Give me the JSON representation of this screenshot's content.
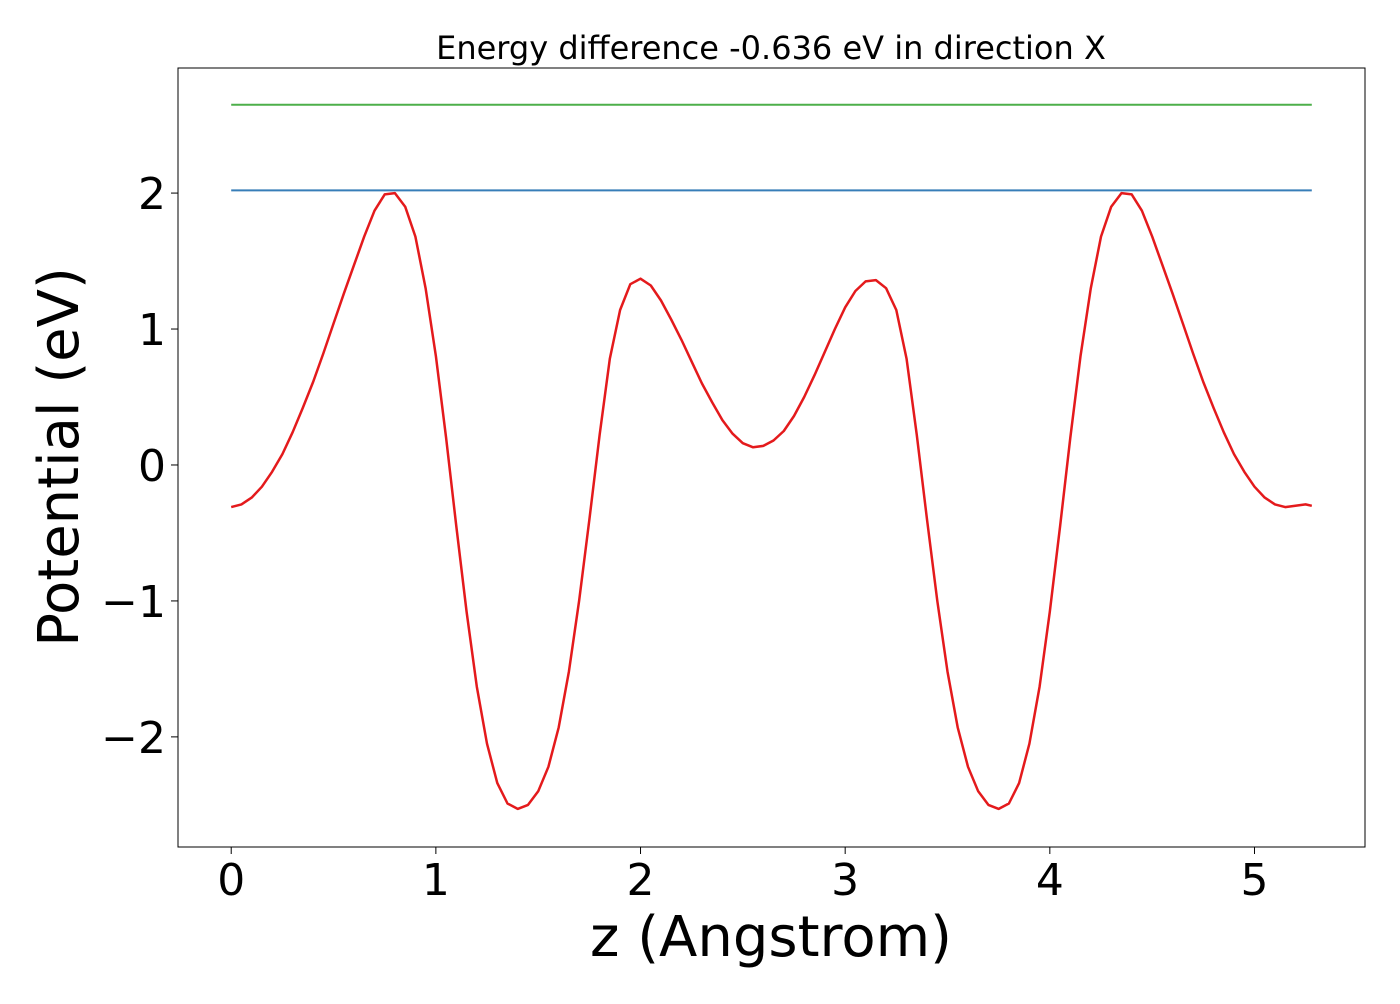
{
  "chart_data": {
    "type": "line",
    "title": "Energy difference -0.636 eV in direction X",
    "xlabel": "z (Angstrom)",
    "ylabel": "Potential (eV)",
    "xlim": [
      -0.26,
      5.54
    ],
    "ylim": [
      -2.81,
      2.92
    ],
    "xticks": [
      0,
      1,
      2,
      3,
      4,
      5
    ],
    "xtick_labels": [
      "0",
      "1",
      "2",
      "3",
      "4",
      "5"
    ],
    "yticks": [
      -2,
      -1,
      0,
      1,
      2
    ],
    "ytick_labels": [
      "−2",
      "−1",
      "0",
      "1",
      "2"
    ],
    "grid": false,
    "legend": "none",
    "series": [
      {
        "color": "#e41a1c",
        "x": [
          0,
          0.05,
          0.1,
          0.15,
          0.2,
          0.25,
          0.3,
          0.35,
          0.4,
          0.45,
          0.5,
          0.55,
          0.6,
          0.65,
          0.7,
          0.75,
          0.8,
          0.85,
          0.9,
          0.95,
          1.0,
          1.05,
          1.1,
          1.15,
          1.2,
          1.25,
          1.3,
          1.35,
          1.4,
          1.45,
          1.5,
          1.55,
          1.6,
          1.65,
          1.7,
          1.75,
          1.8,
          1.85,
          1.9,
          1.95,
          2.0,
          2.05,
          2.1,
          2.15,
          2.2,
          2.25,
          2.3,
          2.35,
          2.4,
          2.45,
          2.5,
          2.55,
          2.6,
          2.65,
          2.7,
          2.75,
          2.8,
          2.85,
          2.9,
          2.95,
          3.0,
          3.05,
          3.1,
          3.15,
          3.2,
          3.25,
          3.3,
          3.35,
          3.4,
          3.45,
          3.5,
          3.55,
          3.6,
          3.65,
          3.7,
          3.75,
          3.8,
          3.85,
          3.9,
          3.95,
          4.0,
          4.05,
          4.1,
          4.15,
          4.2,
          4.25,
          4.3,
          4.35,
          4.4,
          4.45,
          4.5,
          4.55,
          4.6,
          4.65,
          4.7,
          4.75,
          4.8,
          4.85,
          4.9,
          4.95,
          5.0,
          5.05,
          5.1,
          5.15,
          5.2,
          5.25,
          5.28
        ],
        "y": [
          -0.31,
          -0.29,
          -0.24,
          -0.16,
          -0.05,
          0.08,
          0.24,
          0.42,
          0.61,
          0.82,
          1.04,
          1.26,
          1.47,
          1.68,
          1.87,
          1.99,
          2.0,
          1.9,
          1.68,
          1.3,
          0.8,
          0.2,
          -0.45,
          -1.08,
          -1.63,
          -2.05,
          -2.34,
          -2.49,
          -2.53,
          -2.5,
          -2.4,
          -2.22,
          -1.93,
          -1.52,
          -1.0,
          -0.4,
          0.22,
          0.78,
          1.14,
          1.33,
          1.37,
          1.32,
          1.21,
          1.07,
          0.92,
          0.76,
          0.6,
          0.46,
          0.33,
          0.23,
          0.16,
          0.13,
          0.14,
          0.18,
          0.25,
          0.36,
          0.5,
          0.66,
          0.83,
          1.0,
          1.16,
          1.28,
          1.35,
          1.36,
          1.3,
          1.14,
          0.78,
          0.22,
          -0.4,
          -1.0,
          -1.52,
          -1.93,
          -2.22,
          -2.4,
          -2.5,
          -2.53,
          -2.49,
          -2.34,
          -2.05,
          -1.63,
          -1.08,
          -0.45,
          0.2,
          0.8,
          1.3,
          1.68,
          1.9,
          2.0,
          1.99,
          1.87,
          1.68,
          1.47,
          1.26,
          1.04,
          0.82,
          0.61,
          0.42,
          0.24,
          0.08,
          -0.05,
          -0.16,
          -0.24,
          -0.29,
          -0.31,
          -0.3,
          -0.29,
          -0.3
        ]
      },
      {
        "color": "#377eb8",
        "x": [
          0,
          5.28
        ],
        "y": [
          2.02,
          2.02
        ]
      },
      {
        "color": "#4daf4a",
        "x": [
          0,
          5.28
        ],
        "y": [
          2.65,
          2.65
        ]
      }
    ]
  }
}
